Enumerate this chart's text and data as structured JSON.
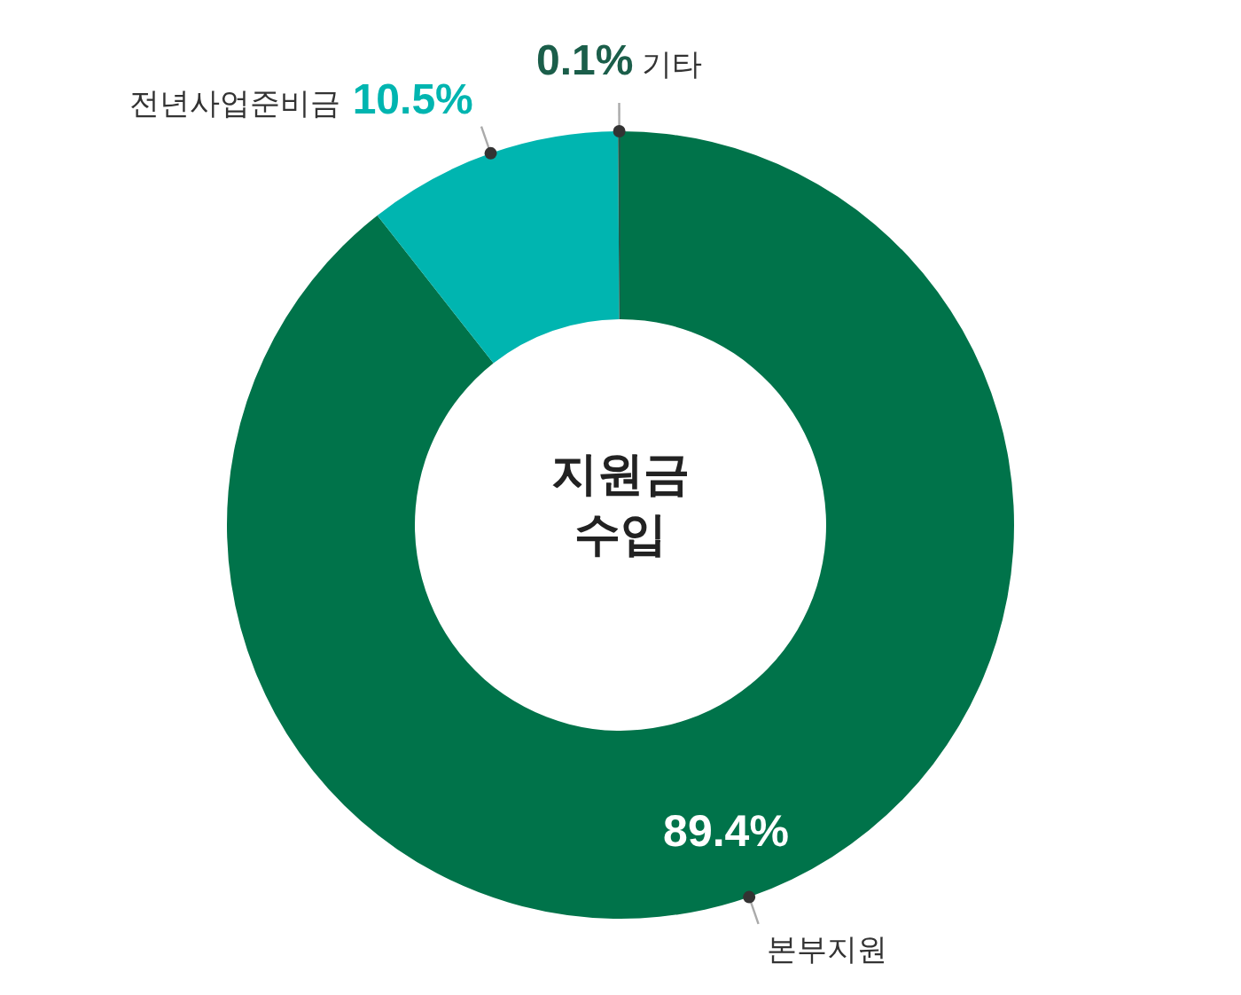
{
  "chart_data": {
    "type": "donut",
    "title": "지원금 수입",
    "categories": [
      "본부지원",
      "전년사업준비금",
      "기타"
    ],
    "values": [
      89.4,
      10.5,
      0.1
    ],
    "colors": [
      "#00734a",
      "#00b5b0",
      "#1b5e4a"
    ],
    "value_labels": [
      "89.4%",
      "10.5%",
      "0.1%"
    ]
  }
}
